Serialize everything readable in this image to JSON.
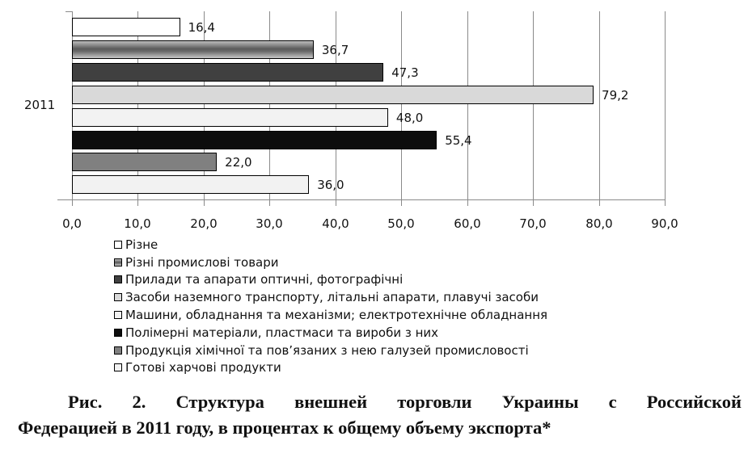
{
  "chart_data": {
    "type": "bar",
    "orientation": "horizontal",
    "title": "",
    "xlabel": "",
    "ylabel": "",
    "xlim": [
      0,
      90
    ],
    "x_ticks": [
      "0,0",
      "10,0",
      "20,0",
      "30,0",
      "40,0",
      "50,0",
      "60,0",
      "70,0",
      "80,0",
      "90,0"
    ],
    "grid": true,
    "legend_position": "bottom",
    "category": "2011",
    "series": [
      {
        "name": "Різне",
        "value": 16.4,
        "label": "16,4",
        "color": "#ffffff"
      },
      {
        "name": "Різні промислові товари",
        "value": 36.7,
        "label": "36,7",
        "color": "#6e6e6e",
        "gradient": true
      },
      {
        "name": "Прилади та апарати оптичні, фотографічні",
        "value": 47.3,
        "label": "47,3",
        "color": "#404040"
      },
      {
        "name": "Засоби наземного транспорту, літальні апарати, плавучі засоби",
        "value": 79.2,
        "label": "79,2",
        "color": "#d9d9d9"
      },
      {
        "name": "Машини, обладнання та механізми; електротехнічне  обладнання",
        "value": 48.0,
        "label": "48,0",
        "color": "#f2f2f2"
      },
      {
        "name": "Полімерні матеріали, пластмаси та вироби з них",
        "value": 55.4,
        "label": "55,4",
        "color": "#0d0d0d"
      },
      {
        "name": "Продукція хімічної та пов’язаних з нею галузей промисловості",
        "value": 22.0,
        "label": "22,0",
        "color": "#808080"
      },
      {
        "name": "Готові харчові продукти",
        "value": 36.0,
        "label": "36,0",
        "color": "#f2f2f2"
      }
    ]
  },
  "caption": {
    "line1": "Рис. 2. Структура внешней торговли Украины с Российской",
    "line2": "Федерацией в 2011 году, в процентах к общему объему экспорта*"
  }
}
